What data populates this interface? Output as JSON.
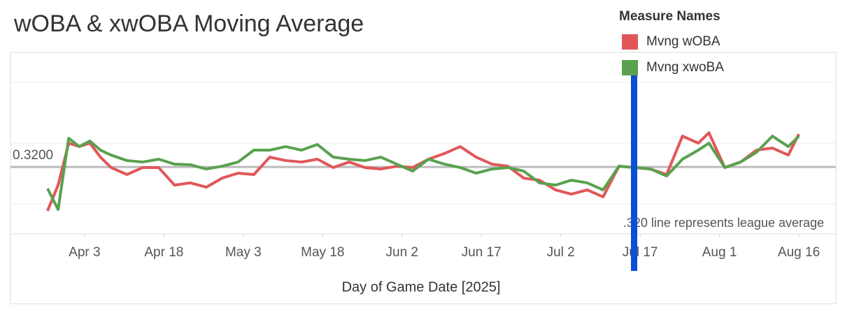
{
  "chart_data": {
    "type": "line",
    "title": "wOBA & xwOBA Moving Average",
    "x_label": "Day of Game Date [2025]",
    "legend_title": "Measure Names",
    "annotation": ".320 line represents league average",
    "x": [
      "2025-03-27",
      "2025-03-29",
      "2025-03-31",
      "2025-04-02",
      "2025-04-04",
      "2025-04-06",
      "2025-04-08",
      "2025-04-11",
      "2025-04-14",
      "2025-04-17",
      "2025-04-20",
      "2025-04-23",
      "2025-04-26",
      "2025-04-29",
      "2025-05-02",
      "2025-05-05",
      "2025-05-08",
      "2025-05-11",
      "2025-05-14",
      "2025-05-17",
      "2025-05-20",
      "2025-05-23",
      "2025-05-26",
      "2025-05-29",
      "2025-06-01",
      "2025-06-04",
      "2025-06-07",
      "2025-06-10",
      "2025-06-13",
      "2025-06-16",
      "2025-06-19",
      "2025-06-22",
      "2025-06-25",
      "2025-06-28",
      "2025-07-01",
      "2025-07-04",
      "2025-07-07",
      "2025-07-10",
      "2025-07-13",
      "2025-07-16",
      "2025-07-19",
      "2025-07-22",
      "2025-07-25",
      "2025-07-28",
      "2025-07-30",
      "2025-08-02",
      "2025-08-05",
      "2025-08-08",
      "2025-08-11",
      "2025-08-14",
      "2025-08-16"
    ],
    "series": [
      {
        "name": "Mvng wOBA",
        "color": "#e15759",
        "values": [
          0.2905,
          0.3078,
          0.336,
          0.3337,
          0.336,
          0.3266,
          0.3196,
          0.3149,
          0.3196,
          0.3196,
          0.3078,
          0.3093,
          0.3064,
          0.3125,
          0.3158,
          0.3149,
          0.3266,
          0.3243,
          0.3233,
          0.3252,
          0.3196,
          0.3233,
          0.3196,
          0.3186,
          0.3205,
          0.3196,
          0.3252,
          0.329,
          0.3337,
          0.3266,
          0.3219,
          0.3205,
          0.3125,
          0.3111,
          0.3046,
          0.3017,
          0.3046,
          0.2999,
          0.3205,
          0.3196,
          0.3186,
          0.3149,
          0.3407,
          0.336,
          0.343,
          0.3196,
          0.3233,
          0.3313,
          0.3327,
          0.328,
          0.3421
        ]
      },
      {
        "name": "Mvng xwoBA",
        "color": "#59a14f",
        "values": [
          0.3055,
          0.2914,
          0.3393,
          0.3337,
          0.3374,
          0.3313,
          0.328,
          0.3243,
          0.3233,
          0.3252,
          0.3219,
          0.3215,
          0.3186,
          0.3205,
          0.3233,
          0.3313,
          0.3313,
          0.3337,
          0.3313,
          0.3351,
          0.3266,
          0.3252,
          0.3243,
          0.3266,
          0.3219,
          0.3172,
          0.3252,
          0.3219,
          0.3196,
          0.3158,
          0.3186,
          0.3196,
          0.3172,
          0.3093,
          0.3078,
          0.3111,
          0.3093,
          0.3046,
          0.3205,
          0.3196,
          0.3186,
          0.3139,
          0.3252,
          0.3313,
          0.336,
          0.3196,
          0.3233,
          0.3299,
          0.3407,
          0.3337,
          0.3407
        ]
      }
    ],
    "xlim": [
      "2025-03-20",
      "2025-08-23"
    ],
    "xticks": [
      {
        "value": "2025-04-03",
        "label": "Apr 3"
      },
      {
        "value": "2025-04-18",
        "label": "Apr 18"
      },
      {
        "value": "2025-05-03",
        "label": "May 3"
      },
      {
        "value": "2025-05-18",
        "label": "May 18"
      },
      {
        "value": "2025-06-02",
        "label": "Jun 2"
      },
      {
        "value": "2025-06-17",
        "label": "Jun 17"
      },
      {
        "value": "2025-07-02",
        "label": "Jul 2"
      },
      {
        "value": "2025-07-17",
        "label": "Jul 17"
      },
      {
        "value": "2025-08-01",
        "label": "Aug 1"
      },
      {
        "value": "2025-08-16",
        "label": "Aug 16"
      }
    ],
    "ylim": [
      0.275,
      0.397
    ],
    "yticks": [
      {
        "value": 0.32,
        "label": "0.3200"
      }
    ]
  }
}
